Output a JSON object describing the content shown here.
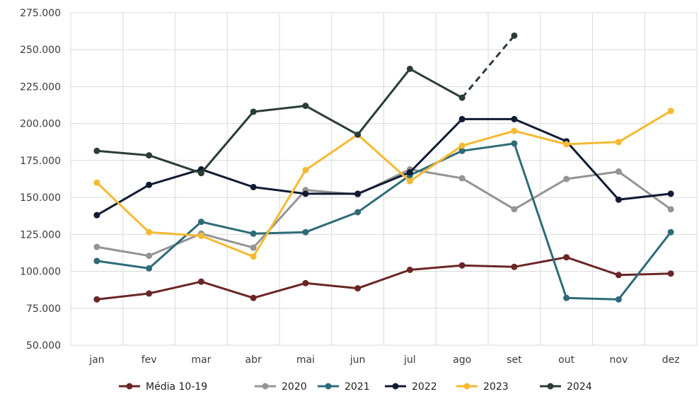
{
  "chart_data": {
    "type": "line",
    "categories": [
      "jan",
      "fev",
      "mar",
      "abr",
      "mai",
      "jun",
      "jul",
      "ago",
      "set",
      "out",
      "nov",
      "dez"
    ],
    "ylim": [
      50000,
      275000
    ],
    "yticks": [
      50000,
      75000,
      100000,
      125000,
      150000,
      175000,
      200000,
      225000,
      250000,
      275000
    ],
    "ytick_labels": [
      "50.000",
      "75.000",
      "100.000",
      "125.000",
      "150.000",
      "175.000",
      "200.000",
      "225.000",
      "250.000",
      "275.000"
    ],
    "grid": true,
    "legend_position": "bottom",
    "series": [
      {
        "name": "Média 10-19",
        "color": "#6b2525",
        "values": [
          81000,
          85000,
          93000,
          82000,
          92000,
          88500,
          101000,
          104000,
          103000,
          109500,
          97500,
          98500
        ]
      },
      {
        "name": "2020",
        "color": "#949494",
        "values": [
          116500,
          110500,
          125500,
          116000,
          155000,
          152000,
          169000,
          163000,
          142000,
          162500,
          167500,
          142000
        ]
      },
      {
        "name": "2021",
        "color": "#2e6b78",
        "values": [
          107000,
          102000,
          133500,
          125500,
          126500,
          140000,
          165000,
          181500,
          186500,
          82000,
          81000,
          126500
        ]
      },
      {
        "name": "2022",
        "color": "#101a33",
        "values": [
          138000,
          158500,
          169000,
          157000,
          152500,
          152500,
          167000,
          203000,
          203000,
          188000,
          148500,
          152500
        ]
      },
      {
        "name": "2023",
        "color": "#f5b932",
        "values": [
          160000,
          126500,
          124000,
          110000,
          168500,
          192500,
          161000,
          185000,
          195000,
          186000,
          187500,
          208500
        ]
      },
      {
        "name": "2024",
        "color": "#2a3d35",
        "values": [
          181500,
          178500,
          166500,
          208000,
          212000,
          192500,
          237000,
          217500,
          259500,
          null,
          null,
          null
        ],
        "dashed_from_index": 7
      }
    ]
  }
}
